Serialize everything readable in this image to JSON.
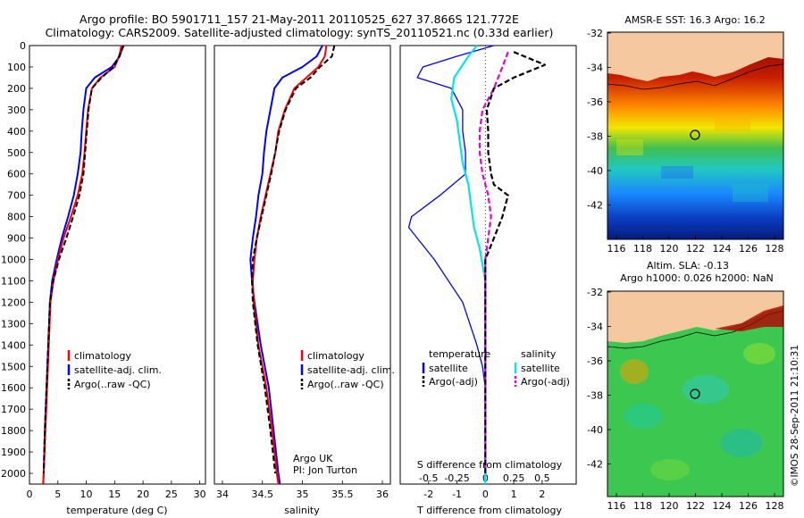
{
  "header": {
    "line1": "Argo profile: BO 5901711_157 21-May-2011 20110525_627 37.866S 121.772E",
    "line2": "Climatology: CARS2009. Satellite-adjusted climatology: synTS_20110521.nc (0.33d earlier)"
  },
  "side_label": "©IMOS 28-Sep-2011 21:10:31",
  "map_top": {
    "title": "AMSR-E SST: 16.3 Argo: 16.2",
    "xticks": [
      "116",
      "118",
      "120",
      "122",
      "124",
      "126",
      "128"
    ],
    "yticks": [
      "-32",
      "-34",
      "-36",
      "-38",
      "-40",
      "-42"
    ]
  },
  "map_bottom": {
    "title1": "Altim. SLA: -0.13",
    "title2": "Argo h1000: 0.026 h2000: NaN",
    "xticks": [
      "116",
      "118",
      "120",
      "122",
      "124",
      "126",
      "128"
    ],
    "yticks": [
      "-32",
      "-34",
      "-36",
      "-38",
      "-40",
      "-42"
    ]
  },
  "colors": {
    "climatology": "#ff0000",
    "satellite": "#0000ff",
    "argo": "#000000",
    "sal_satellite": "#00e5ee",
    "sal_argo": "#e000e0",
    "land": "#f5c8a0"
  },
  "chart_data": [
    {
      "type": "line",
      "xlabel": "temperature (deg C)",
      "ylabel": "",
      "xlim": [
        0,
        31
      ],
      "ylim": [
        2050,
        0
      ],
      "xticks": [
        "0",
        "5",
        "10",
        "15",
        "20",
        "25",
        "30"
      ],
      "yticks": [
        "0",
        "100",
        "200",
        "300",
        "400",
        "500",
        "600",
        "700",
        "800",
        "900",
        "1000",
        "1100",
        "1200",
        "1300",
        "1400",
        "1500",
        "1600",
        "1700",
        "1800",
        "1900",
        "2000"
      ],
      "legend": [
        "climatology",
        "satellite-adj. clim.",
        "Argo(..raw -QC)"
      ],
      "series": [
        {
          "name": "climatology",
          "x": [
            16.2,
            15.8,
            15.0,
            12.5,
            11.0,
            10.3,
            10.0,
            9.7,
            9.3,
            8.5,
            7.3,
            6.0,
            5.0,
            4.2,
            3.7,
            3.4,
            3.1,
            2.8,
            2.5,
            2.4
          ],
          "y": [
            0,
            50,
            100,
            150,
            200,
            300,
            400,
            500,
            600,
            700,
            800,
            900,
            1000,
            1100,
            1200,
            1400,
            1600,
            1800,
            2000,
            2050
          ]
        },
        {
          "name": "satellite-adj. clim.",
          "x": [
            16.5,
            15.9,
            14.5,
            11.5,
            10.0,
            9.5,
            9.2,
            9.0,
            8.5,
            7.8,
            6.8,
            5.7,
            4.8,
            4.0,
            3.6,
            3.3,
            3.0,
            2.7,
            2.5,
            2.4
          ],
          "y": [
            0,
            50,
            100,
            150,
            200,
            300,
            400,
            500,
            600,
            700,
            800,
            900,
            1000,
            1100,
            1200,
            1400,
            1600,
            1800,
            2000,
            2050
          ]
        },
        {
          "name": "Argo(..raw -QC)",
          "x": [
            16.6,
            15.8,
            14.8,
            12.7,
            11.0,
            10.4,
            10.1,
            9.8,
            9.5,
            8.8,
            7.7,
            6.5,
            5.2,
            4.2,
            3.6,
            3.3,
            3.0,
            2.7,
            2.5
          ],
          "y": [
            0,
            50,
            100,
            150,
            200,
            300,
            400,
            500,
            600,
            700,
            800,
            900,
            1000,
            1100,
            1200,
            1400,
            1600,
            1800,
            2000
          ]
        }
      ]
    },
    {
      "type": "line",
      "xlabel": "salinity",
      "ylabel": "",
      "xlim": [
        33.9,
        36.1
      ],
      "ylim": [
        2050,
        0
      ],
      "xticks": [
        "34",
        "34.5",
        "35",
        "35.5",
        "36"
      ],
      "legend": [
        "climatology",
        "satellite-adj. clim.",
        "Argo(..raw -QC)"
      ],
      "annotations": [
        "Argo UK",
        "PI: Jon Turton"
      ],
      "series": [
        {
          "name": "climatology",
          "x": [
            35.3,
            35.28,
            35.2,
            35.05,
            34.9,
            34.78,
            34.7,
            34.66,
            34.6,
            34.54,
            34.48,
            34.43,
            34.4,
            34.38,
            34.39,
            34.45,
            34.55,
            34.62,
            34.68,
            34.7
          ],
          "y": [
            0,
            50,
            100,
            150,
            200,
            300,
            400,
            500,
            600,
            700,
            800,
            900,
            1000,
            1100,
            1200,
            1400,
            1600,
            1800,
            2000,
            2050
          ]
        },
        {
          "name": "satellite-adj. clim.",
          "x": [
            35.25,
            35.18,
            35.0,
            34.75,
            34.65,
            34.6,
            34.55,
            34.52,
            34.5,
            34.45,
            34.42,
            34.38,
            34.35,
            34.37,
            34.4,
            34.48,
            34.58,
            34.64,
            34.7,
            34.72
          ],
          "y": [
            0,
            50,
            100,
            150,
            200,
            300,
            400,
            500,
            600,
            700,
            800,
            900,
            1000,
            1100,
            1200,
            1400,
            1600,
            1800,
            2000,
            2050
          ]
        },
        {
          "name": "Argo(..raw -QC)",
          "x": [
            35.4,
            35.37,
            35.22,
            35.1,
            34.92,
            34.79,
            34.71,
            34.66,
            34.61,
            34.55,
            34.49,
            34.43,
            34.38,
            34.37,
            34.38,
            34.44,
            34.53,
            34.6,
            34.66
          ],
          "y": [
            0,
            50,
            100,
            150,
            200,
            300,
            400,
            500,
            600,
            700,
            800,
            900,
            1000,
            1100,
            1200,
            1400,
            1600,
            1800,
            2000
          ]
        }
      ]
    },
    {
      "type": "line",
      "xlabel": "T difference from climatology",
      "xlabel_top": "S difference from climatology",
      "xlim": [
        -3,
        3.2
      ],
      "ylim": [
        2050,
        0
      ],
      "xticks": [
        "-2",
        "-1",
        "0",
        "1",
        "2"
      ],
      "xticks_salinity": [
        "-0.5",
        "-0.25",
        "0",
        "0.25",
        "0.5"
      ],
      "legend_temperature": [
        "temperature",
        "satellite",
        "Argo(-adj)"
      ],
      "legend_salinity": [
        "salinity",
        "satellite",
        "Argo(-adj)"
      ],
      "series": [
        {
          "name": "temperature satellite",
          "x": [
            0.3,
            -1.0,
            -2.2,
            -2.4,
            -1.2,
            -0.8,
            -0.8,
            -0.7,
            -0.7,
            -1.6,
            -2.6,
            -2.7,
            -1.8,
            -0.8,
            -0.3,
            -0.1,
            0.0,
            0.0,
            0.0,
            0.0
          ],
          "y": [
            0,
            50,
            100,
            150,
            200,
            300,
            400,
            500,
            600,
            700,
            800,
            850,
            1000,
            1200,
            1400,
            1500,
            1600,
            1800,
            2000,
            2050
          ]
        },
        {
          "name": "temperature Argo(-adj)",
          "x": [
            1.0,
            2.1,
            1.0,
            0.3,
            0.05,
            0.1,
            0.1,
            0.2,
            0.3,
            0.8,
            0.6,
            0.3,
            0.0,
            0.0,
            0.0,
            0.0,
            0.0,
            0.0
          ],
          "y": [
            30,
            90,
            150,
            200,
            300,
            400,
            500,
            600,
            650,
            700,
            800,
            900,
            1000,
            1200,
            1400,
            1600,
            1800,
            2000
          ]
        },
        {
          "name": "salinity satellite",
          "x": [
            -0.3,
            -0.6,
            -1.1,
            -1.2,
            -1.0,
            -0.9,
            -0.8,
            -0.6,
            -0.5,
            -0.4,
            -0.2,
            0.0,
            0.0,
            0.0,
            0.0
          ],
          "y": [
            0,
            50,
            150,
            250,
            350,
            450,
            550,
            650,
            750,
            850,
            950,
            1100,
            1300,
            1600,
            2050
          ]
        },
        {
          "name": "salinity Argo(-adj)",
          "x": [
            0.8,
            0.6,
            0.3,
            -0.1,
            -0.2,
            -0.2,
            -0.1,
            0.1,
            0.2,
            0.1,
            0.0,
            0.0,
            0.0,
            0.0
          ],
          "y": [
            30,
            100,
            200,
            300,
            400,
            500,
            600,
            700,
            800,
            900,
            1000,
            1200,
            1500,
            2000
          ]
        }
      ]
    }
  ]
}
